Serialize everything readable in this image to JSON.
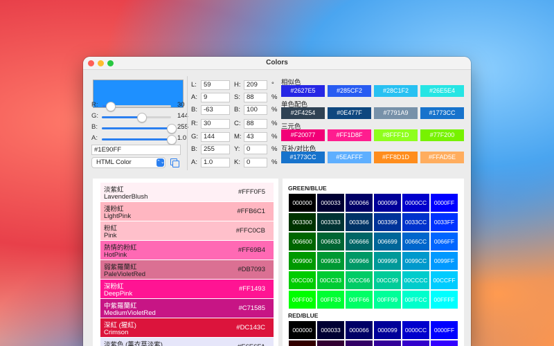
{
  "window": {
    "title": "Colors"
  },
  "preview": {
    "color": "#1E90FF"
  },
  "rgb_sliders": [
    {
      "label": "R:",
      "value": "30",
      "fraction": 0.118
    },
    {
      "label": "G:",
      "value": "144",
      "fraction": 0.565
    },
    {
      "label": "B:",
      "value": "255",
      "fraction": 1.0
    },
    {
      "label": "A:",
      "value": "1.0",
      "fraction": 1.0
    }
  ],
  "hex_value": "#1E90FF",
  "format_select": {
    "value": "HTML Color",
    "arrow": "⌃⌄"
  },
  "fields_col1": [
    {
      "label": "L:",
      "value": "59",
      "unit": ""
    },
    {
      "label": "A:",
      "value": "9",
      "unit": ""
    },
    {
      "label": "B:",
      "value": "-63",
      "unit": ""
    },
    {
      "label": "R:",
      "value": "30",
      "unit": ""
    },
    {
      "label": "G:",
      "value": "144",
      "unit": ""
    },
    {
      "label": "B:",
      "value": "255",
      "unit": ""
    },
    {
      "label": "A:",
      "value": "1.0",
      "unit": ""
    }
  ],
  "fields_col2": [
    {
      "label": "H:",
      "value": "209",
      "unit": "°"
    },
    {
      "label": "S:",
      "value": "88",
      "unit": "%"
    },
    {
      "label": "B:",
      "value": "100",
      "unit": "%"
    },
    {
      "label": "C:",
      "value": "88",
      "unit": "%"
    },
    {
      "label": "M:",
      "value": "43",
      "unit": "%"
    },
    {
      "label": "Y:",
      "value": "0",
      "unit": "%"
    },
    {
      "label": "K:",
      "value": "0",
      "unit": "%"
    }
  ],
  "harmonies": [
    {
      "label": "相似色",
      "chips": [
        {
          "hex": "#2627E5",
          "text": "#2627E5"
        },
        {
          "hex": "#285CF2",
          "text": "#285CF2"
        },
        {
          "hex": "#28C1F2",
          "text": "#28C1F2"
        },
        {
          "hex": "#26E5E4",
          "text": "#26E5E4"
        }
      ]
    },
    {
      "label": "单色配色",
      "chips": [
        {
          "hex": "#2F4254",
          "text": "#2F4254"
        },
        {
          "hex": "#0E477F",
          "text": "#0E477F"
        },
        {
          "hex": "#7791A9",
          "text": "#7791A9"
        },
        {
          "hex": "#1773CC",
          "text": "#1773CC"
        }
      ]
    },
    {
      "label": "三元色",
      "chips": [
        {
          "hex": "#F20077",
          "text": "#F20077"
        },
        {
          "hex": "#FF1D8F",
          "text": "#FF1D8F"
        },
        {
          "hex": "#8FFF1D",
          "text": "#8FFF1D"
        },
        {
          "hex": "#77F200",
          "text": "#77F200"
        }
      ]
    },
    {
      "label": "互补/对比色",
      "chips": [
        {
          "hex": "#1773CC",
          "text": "#1773CC"
        },
        {
          "hex": "#5EAFFF",
          "text": "#5EAFFF"
        },
        {
          "hex": "#FF8D1D",
          "text": "#FF8D1D"
        },
        {
          "hex": "#FFAD5E",
          "text": "#FFAD5E"
        }
      ]
    }
  ],
  "named_colors": [
    {
      "zh": "淡紫紅",
      "en": "LavenderBlush",
      "hex": "#FFF0F5",
      "dark": false
    },
    {
      "zh": "淺粉紅",
      "en": "LightPink",
      "hex": "#FFB6C1",
      "dark": false
    },
    {
      "zh": "粉紅",
      "en": "Pink",
      "hex": "#FFC0CB",
      "dark": false
    },
    {
      "zh": "熱情的粉紅",
      "en": "HotPink",
      "hex": "#FF69B4",
      "dark": false
    },
    {
      "zh": "弱紫羅蘭紅",
      "en": "PaleVioletRed",
      "hex": "#DB7093",
      "dark": false
    },
    {
      "zh": "深粉紅",
      "en": "DeepPink",
      "hex": "#FF1493",
      "dark": true
    },
    {
      "zh": "中紫羅蘭紅",
      "en": "MediumVioletRed",
      "hex": "#C71585",
      "dark": true
    },
    {
      "zh": "深紅 (猩紅)",
      "en": "Crimson",
      "hex": "#DC143C",
      "dark": true
    },
    {
      "zh": "淡紫色 (薰衣草淡紫)",
      "en": "",
      "hex": "#E6E6FA",
      "dark": false,
      "hex_text": "#E6E6FA"
    }
  ],
  "grids": [
    {
      "title": "GREEN/BLUE",
      "rows": [
        [
          "000000",
          "000033",
          "000066",
          "000099",
          "0000CC",
          "0000FF"
        ],
        [
          "003300",
          "003333",
          "003366",
          "003399",
          "0033CC",
          "0033FF"
        ],
        [
          "006600",
          "006633",
          "006666",
          "006699",
          "0066CC",
          "0066FF"
        ],
        [
          "009900",
          "009933",
          "009966",
          "009999",
          "0099CC",
          "0099FF"
        ],
        [
          "00CC00",
          "00CC33",
          "00CC66",
          "00CC99",
          "00CCCC",
          "00CCFF"
        ],
        [
          "00FF00",
          "00FF33",
          "00FF66",
          "00FF99",
          "00FFCC",
          "00FFFF"
        ]
      ]
    },
    {
      "title": "RED/BLUE",
      "rows": [
        [
          "000000",
          "000033",
          "000066",
          "000099",
          "0000CC",
          "0000FF"
        ],
        [
          "330000",
          "330033",
          "330066",
          "330099",
          "3300CC",
          "3300FF"
        ]
      ]
    }
  ]
}
